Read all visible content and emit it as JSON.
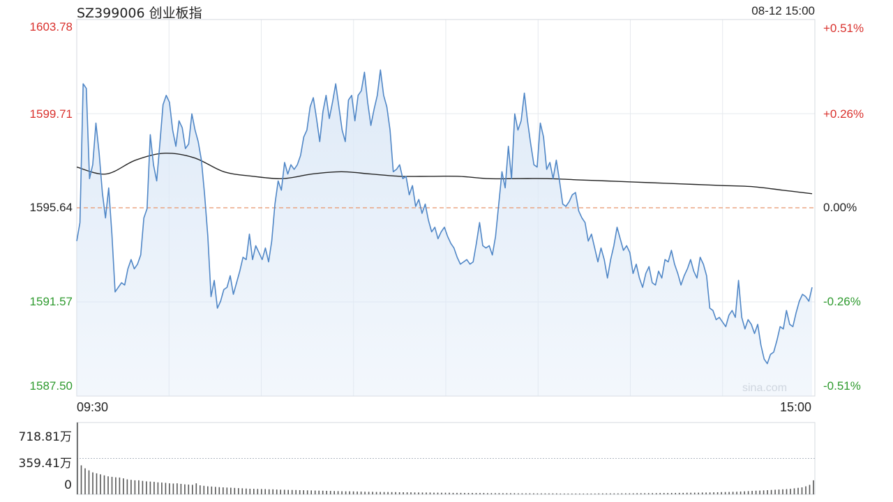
{
  "header": {
    "title": "SZ399006 创业板指",
    "datetime": "08-12 15:00"
  },
  "watermark": "sina.com",
  "chart_data": [
    {
      "type": "line",
      "title": "SZ399006 创业板指",
      "ylim": [
        1587.5,
        1603.78
      ],
      "base": 1595.64,
      "y_ticks_left": [
        "1603.78",
        "1599.71",
        "1595.64",
        "1591.57",
        "1587.50"
      ],
      "y_ticks_right": [
        "+0.51%",
        "+0.26%",
        "0.00%",
        "-0.26%",
        "-0.51%"
      ],
      "x_ticks": [
        "09:30",
        "15:00"
      ],
      "colors": {
        "price": "#4f86c6",
        "avg": "#222222",
        "up": "#d9302c",
        "down": "#2e9a2e",
        "flat": "#222222",
        "baseline": "#e8956a",
        "fill": "#dde9f7"
      },
      "series": [
        {
          "role": "price",
          "values": [
            1594.2,
            1595.0,
            1601.0,
            1600.8,
            1596.9,
            1597.5,
            1599.3,
            1598.0,
            1596.3,
            1595.2,
            1596.5,
            1594.5,
            1592.0,
            1592.2,
            1592.4,
            1592.3,
            1593.0,
            1593.4,
            1593.0,
            1593.2,
            1593.6,
            1595.2,
            1595.6,
            1598.8,
            1597.5,
            1596.8,
            1598.4,
            1600.1,
            1600.5,
            1600.2,
            1599.0,
            1598.3,
            1599.4,
            1599.1,
            1598.2,
            1598.4,
            1599.7,
            1599.0,
            1598.5,
            1597.7,
            1596.2,
            1594.4,
            1591.8,
            1592.5,
            1591.3,
            1591.6,
            1592.1,
            1592.2,
            1592.7,
            1591.9,
            1592.4,
            1592.9,
            1593.5,
            1593.4,
            1594.5,
            1593.4,
            1594.0,
            1593.7,
            1593.4,
            1593.9,
            1593.3,
            1594.2,
            1595.8,
            1596.8,
            1596.4,
            1597.6,
            1597.1,
            1597.5,
            1597.3,
            1597.5,
            1597.9,
            1598.7,
            1599.0,
            1600.0,
            1600.4,
            1599.5,
            1598.5,
            1599.8,
            1600.5,
            1599.5,
            1600.2,
            1601.0,
            1600.0,
            1599.0,
            1598.5,
            1600.3,
            1600.5,
            1599.4,
            1600.5,
            1600.7,
            1601.5,
            1600.2,
            1599.2,
            1599.9,
            1600.5,
            1601.6,
            1600.5,
            1600.0,
            1599.0,
            1597.2,
            1597.3,
            1597.5,
            1596.9,
            1597.0,
            1596.2,
            1596.6,
            1595.7,
            1596.0,
            1595.4,
            1595.8,
            1595.1,
            1594.6,
            1594.8,
            1594.3,
            1594.6,
            1594.8,
            1594.4,
            1594.1,
            1593.9,
            1593.5,
            1593.2,
            1593.3,
            1593.4,
            1593.2,
            1593.3,
            1594.1,
            1595.0,
            1594.0,
            1593.9,
            1594.0,
            1593.6,
            1594.4,
            1595.8,
            1597.2,
            1596.5,
            1598.3,
            1596.9,
            1599.7,
            1599.0,
            1599.4,
            1600.6,
            1599.4,
            1598.4,
            1597.5,
            1597.4,
            1599.3,
            1598.7,
            1597.3,
            1597.6,
            1596.9,
            1597.7,
            1596.8,
            1595.8,
            1595.7,
            1595.9,
            1596.2,
            1596.3,
            1595.5,
            1595.2,
            1595.0,
            1594.2,
            1594.5,
            1593.9,
            1593.3,
            1593.9,
            1593.4,
            1592.6,
            1593.4,
            1594.0,
            1594.8,
            1594.3,
            1593.8,
            1594.0,
            1593.7,
            1592.8,
            1593.2,
            1592.6,
            1592.2,
            1592.8,
            1593.1,
            1592.4,
            1592.3,
            1592.9,
            1592.6,
            1593.4,
            1593.3,
            1593.8,
            1593.2,
            1592.8,
            1592.3,
            1592.7,
            1593.0,
            1593.4,
            1592.9,
            1592.6,
            1593.5,
            1593.2,
            1592.7,
            1591.3,
            1591.2,
            1590.8,
            1590.9,
            1590.7,
            1590.5,
            1591.0,
            1591.2,
            1590.9,
            1592.5,
            1590.9,
            1590.4,
            1590.8,
            1590.6,
            1590.2,
            1590.6,
            1589.7,
            1589.1,
            1588.9,
            1589.3,
            1589.4,
            1589.9,
            1590.5,
            1590.4,
            1591.2,
            1590.6,
            1590.5,
            1591.1,
            1591.6,
            1591.9,
            1591.8,
            1591.6,
            1592.2
          ]
        },
        {
          "role": "average",
          "values": [
            1597.4,
            1597.1,
            1597.7,
            1598.0,
            1597.8,
            1597.2,
            1597.0,
            1596.9,
            1597.1,
            1597.2,
            1597.1,
            1597.0,
            1597.0,
            1597.0,
            1596.9,
            1596.9,
            1596.9,
            1596.85,
            1596.8,
            1596.75,
            1596.7,
            1596.65,
            1596.6,
            1596.55,
            1596.4,
            1596.25
          ]
        }
      ]
    },
    {
      "type": "bar",
      "title": "",
      "ylim": [
        0,
        718.81
      ],
      "y_ticks": [
        "718.81万",
        "359.41万",
        "0"
      ],
      "color": "#555555",
      "values": [
        719,
        290,
        260,
        240,
        220,
        210,
        200,
        190,
        180,
        175,
        170,
        168,
        160,
        150,
        145,
        140,
        140,
        135,
        130,
        128,
        125,
        120,
        118,
        115,
        110,
        108,
        110,
        105,
        100,
        98,
        95,
        110,
        90,
        85,
        80,
        78,
        75,
        72,
        70,
        68,
        66,
        64,
        62,
        60,
        58,
        56,
        55,
        54,
        53,
        52,
        50,
        50,
        48,
        47,
        46,
        45,
        44,
        43,
        42,
        41,
        40,
        39,
        38,
        37,
        36,
        35,
        34,
        33,
        32,
        31,
        30,
        30,
        29,
        28,
        27,
        26,
        25,
        25,
        24,
        24,
        23,
        23,
        22,
        22,
        21,
        21,
        20,
        20,
        19,
        19,
        18,
        18,
        18,
        17,
        17,
        16,
        16,
        16,
        15,
        15,
        15,
        14,
        14,
        14,
        13,
        13,
        13,
        12,
        12,
        12,
        12,
        11,
        11,
        11,
        11,
        10,
        10,
        10,
        10,
        10,
        9,
        9,
        9,
        9,
        9,
        9,
        8,
        8,
        8,
        8,
        8,
        8,
        8,
        8,
        8,
        8,
        9,
        9,
        9,
        9,
        9,
        9,
        10,
        10,
        10,
        10,
        11,
        11,
        11,
        12,
        12,
        12,
        13,
        13,
        13,
        14,
        14,
        15,
        15,
        16,
        16,
        17,
        17,
        18,
        18,
        19,
        20,
        21,
        22,
        23,
        24,
        25,
        26,
        28,
        30,
        32,
        34,
        36,
        38,
        40,
        42,
        44,
        46,
        48,
        50,
        52,
        55,
        60,
        65,
        70,
        80,
        95,
        140
      ]
    }
  ]
}
